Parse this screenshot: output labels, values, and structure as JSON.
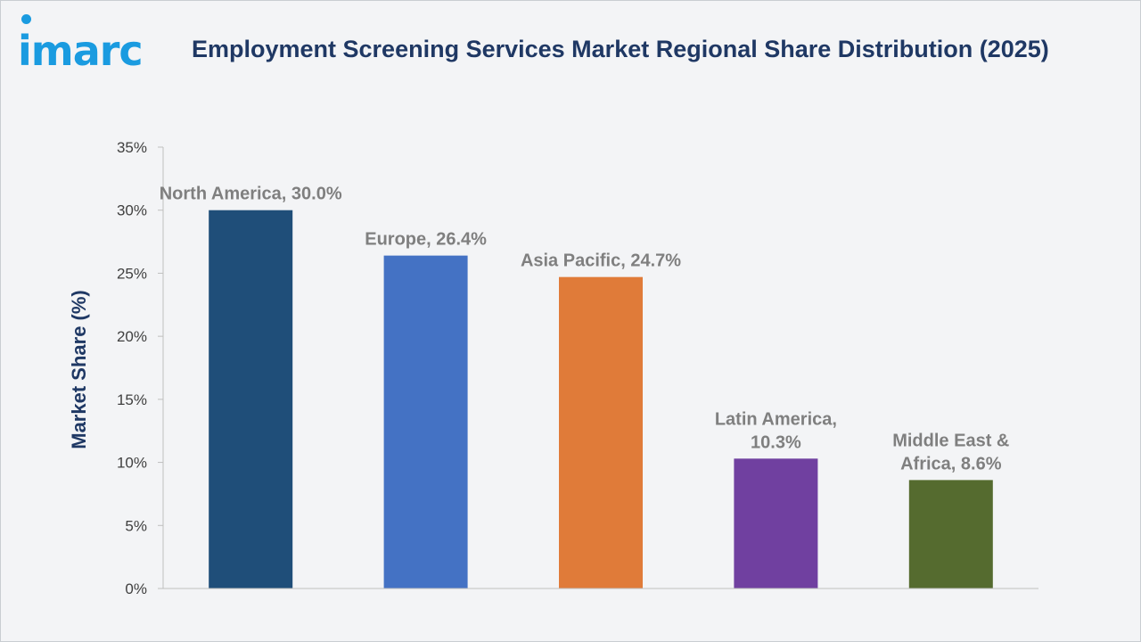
{
  "brand": {
    "logo_text": "imarc",
    "color": "#1a9be0"
  },
  "header": {
    "title": "Employment Screening Services Market Regional Share Distribution (2025)"
  },
  "chart_data": {
    "type": "bar",
    "ylabel": "Market Share (%)",
    "xlabel": "",
    "ylim": [
      0,
      35
    ],
    "ytick_step": 5,
    "ytick_suffix": "%",
    "grid": false,
    "categories": [
      "North America",
      "Europe",
      "Asia Pacific",
      "Latin America",
      "Middle East & Africa"
    ],
    "values": [
      30.0,
      26.4,
      24.7,
      10.3,
      8.6
    ],
    "data_labels": [
      [
        "North America, 30.0%"
      ],
      [
        "Europe, 26.4%"
      ],
      [
        "Asia Pacific, 24.7%"
      ],
      [
        "Latin America,",
        "10.3%"
      ],
      [
        "Middle East &",
        "Africa, 8.6%"
      ]
    ],
    "colors": [
      "#1f4e79",
      "#4472c4",
      "#e07b39",
      "#7040a0",
      "#556b2f"
    ]
  }
}
